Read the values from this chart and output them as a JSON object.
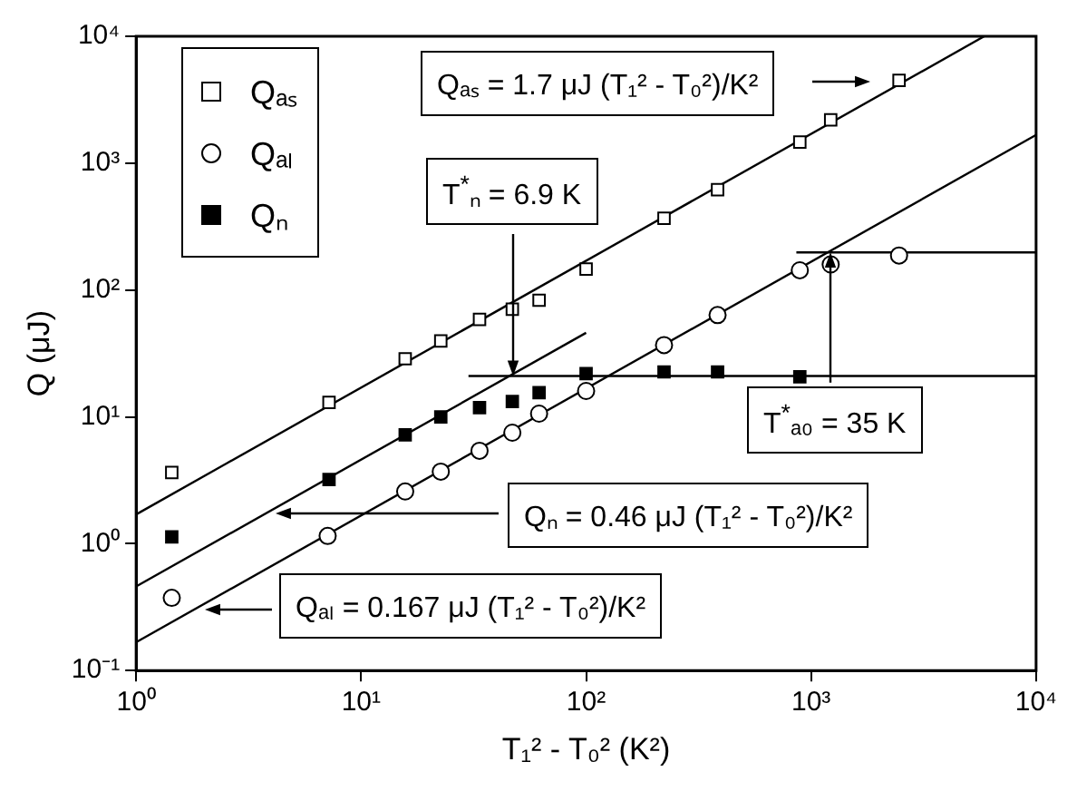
{
  "chart_data": {
    "type": "scatter",
    "xlabel": "T₁² - T₀² (K²)",
    "ylabel": "Q (μJ)",
    "log": "xy",
    "xlim": [
      1,
      10000
    ],
    "ylim": [
      0.1,
      10000
    ],
    "xticks": [
      {
        "value": 1,
        "label": "10⁰"
      },
      {
        "value": 10,
        "label": "10¹"
      },
      {
        "value": 100,
        "label": "10²"
      },
      {
        "value": 1000,
        "label": "10³"
      },
      {
        "value": 10000,
        "label": "10⁴"
      }
    ],
    "yticks": [
      {
        "value": 0.1,
        "label": "10⁻¹"
      },
      {
        "value": 1,
        "label": "10⁰"
      },
      {
        "value": 10,
        "label": "10¹"
      },
      {
        "value": 100,
        "label": "10²"
      },
      {
        "value": 1000,
        "label": "10³"
      },
      {
        "value": 10000,
        "label": "10⁴"
      }
    ],
    "grid": false,
    "legend": "top left",
    "series": [
      {
        "name": "Qₐₛ",
        "marker": "square",
        "color": "#000000",
        "x": [
          1.44,
          7.2,
          15.7,
          22.6,
          33.6,
          47,
          61.8,
          100,
          222,
          384,
          891,
          1222,
          2460
        ],
        "values": [
          3.64,
          13,
          28.7,
          39.7,
          58.6,
          70.6,
          83,
          146,
          367,
          618,
          1468,
          2198,
          4498
        ]
      },
      {
        "name": "Qₐₗ",
        "marker": "circle",
        "color": "#000000",
        "x": [
          1.44,
          7.1,
          15.7,
          22.6,
          33.6,
          47,
          61.8,
          100,
          222,
          384,
          891,
          1222,
          2460
        ],
        "values": [
          0.374,
          1.15,
          2.58,
          3.7,
          5.4,
          7.5,
          10.6,
          16,
          36.8,
          63.4,
          143,
          159,
          187
        ]
      },
      {
        "name": "Qₙ",
        "marker": "square",
        "color": "#000000",
        "x": [
          1.44,
          7.2,
          15.7,
          22.6,
          33.6,
          47,
          61.8,
          100,
          222,
          384,
          891
        ],
        "values": [
          1.13,
          3.2,
          7.2,
          10,
          11.8,
          13.2,
          15.5,
          21.9,
          22.6,
          22.6,
          20.7
        ]
      },
      {
        "type": "line",
        "marker": "none",
        "color": "#000000",
        "x": [
          1,
          5882
        ],
        "values": [
          1.7,
          10000
        ]
      },
      {
        "type": "line",
        "marker": "none",
        "color": "#000000",
        "x": [
          1,
          100
        ],
        "values": [
          0.46,
          46
        ]
      },
      {
        "type": "line",
        "marker": "none",
        "color": "#000000",
        "x": [
          1,
          10000
        ],
        "values": [
          0.167,
          1670
        ]
      },
      {
        "type": "line",
        "marker": "none",
        "color": "#000000",
        "x": [
          30,
          10000
        ],
        "values": [
          21,
          21
        ]
      },
      {
        "type": "line",
        "marker": "none",
        "color": "#000000",
        "x": [
          860,
          10000
        ],
        "values": [
          198,
          198
        ]
      }
    ],
    "annotations": [
      "Qₐₛ = 1.7 μJ (T₁² - T₀²)/K²",
      {
        "text": "T$^{*}$ₙ = 6.9 K",
        "x": 47.6,
        "y": 21
      },
      {
        "text": "T$^{*}$ₐ₀ = 35 K",
        "x": 1225,
        "y": 198
      },
      "Qₙ = 0.46 μJ (T₁² - T₀²)/K²",
      "Qₐₗ = 0.167 μJ (T₁² - T₀²)/K²"
    ]
  }
}
